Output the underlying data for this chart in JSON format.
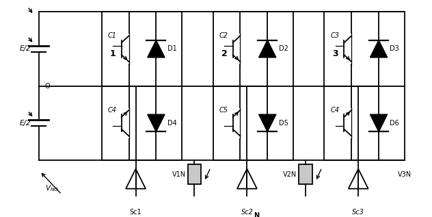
{
  "fig_width": 6.32,
  "fig_height": 3.17,
  "dpi": 100,
  "bg_color": "#ffffff",
  "phases": [
    {
      "label": "1",
      "C_top": "C1",
      "C_bot": "C4",
      "D_top": "D1",
      "D_bot": "D4",
      "Sc": "Sc1"
    },
    {
      "label": "2",
      "C_top": "C2",
      "C_bot": "C5",
      "D_top": "D2",
      "D_bot": "D5",
      "Sc": "Sc2"
    },
    {
      "label": "3",
      "C_top": "C3",
      "C_bot": "C4",
      "D_top": "D3",
      "D_bot": "D6",
      "Sc": "Sc3"
    }
  ],
  "load_labels": [
    "V1N",
    "V2N",
    "V3N"
  ],
  "E2_label": "E/2",
  "O_label": "O",
  "VNO_label": "VNO",
  "N_label": "N"
}
